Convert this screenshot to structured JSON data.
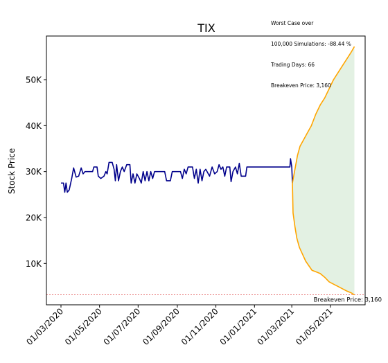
{
  "chart_data": {
    "type": "line",
    "title": "TIX",
    "ylabel": "Stock Price",
    "xlabel": "",
    "annotation_lines": [
      "Worst Case over",
      "100,000 Simulations: -88.44 %",
      "Trading Days: 66",
      "Breakeven Price: 3,160"
    ],
    "breakeven": {
      "label": "Breakeven Price: 3,160",
      "value": 3160,
      "color": "#d62728"
    },
    "xlim": [
      "2020-02-07",
      "2021-06-25"
    ],
    "ylim": [
      1000,
      59500
    ],
    "y_ticks": [
      {
        "value": 10000,
        "label": "10K"
      },
      {
        "value": 20000,
        "label": "20K"
      },
      {
        "value": 30000,
        "label": "30K"
      },
      {
        "value": 40000,
        "label": "40K"
      },
      {
        "value": 50000,
        "label": "50K"
      }
    ],
    "x_ticks": [
      {
        "value": "2020-03-01",
        "label": "01/03/2020"
      },
      {
        "value": "2020-05-01",
        "label": "01/05/2020"
      },
      {
        "value": "2020-07-01",
        "label": "01/07/2020"
      },
      {
        "value": "2020-09-01",
        "label": "01/09/2020"
      },
      {
        "value": "2020-11-01",
        "label": "01/11/2020"
      },
      {
        "value": "2021-01-01",
        "label": "01/01/2021"
      },
      {
        "value": "2021-03-01",
        "label": "01/03/2021"
      },
      {
        "value": "2021-05-01",
        "label": "01/05/2021"
      }
    ],
    "colors": {
      "history": "#00008b",
      "projection": "#ffa500",
      "band_fill": "#d9ecd9",
      "axes": "#000000"
    },
    "series": [
      {
        "kind": "history",
        "points": [
          [
            "2020-03-01",
            27500
          ],
          [
            "2020-03-05",
            27500
          ],
          [
            "2020-03-07",
            25500
          ],
          [
            "2020-03-09",
            27500
          ],
          [
            "2020-03-11",
            25500
          ],
          [
            "2020-03-14",
            26000
          ],
          [
            "2020-03-18",
            28500
          ],
          [
            "2020-03-21",
            30800
          ],
          [
            "2020-03-25",
            28800
          ],
          [
            "2020-03-29",
            29000
          ],
          [
            "2020-04-02",
            30800
          ],
          [
            "2020-04-05",
            29500
          ],
          [
            "2020-04-08",
            30000
          ],
          [
            "2020-04-20",
            30000
          ],
          [
            "2020-04-22",
            31000
          ],
          [
            "2020-04-27",
            31000
          ],
          [
            "2020-04-29",
            29000
          ],
          [
            "2020-05-03",
            28500
          ],
          [
            "2020-05-08",
            29000
          ],
          [
            "2020-05-11",
            30000
          ],
          [
            "2020-05-13",
            29500
          ],
          [
            "2020-05-16",
            32000
          ],
          [
            "2020-05-21",
            32000
          ],
          [
            "2020-05-24",
            30500
          ],
          [
            "2020-05-26",
            28000
          ],
          [
            "2020-05-28",
            31500
          ],
          [
            "2020-05-31",
            28000
          ],
          [
            "2020-06-03",
            30000
          ],
          [
            "2020-06-06",
            31000
          ],
          [
            "2020-06-09",
            30000
          ],
          [
            "2020-06-13",
            31500
          ],
          [
            "2020-06-18",
            31500
          ],
          [
            "2020-06-20",
            27500
          ],
          [
            "2020-06-23",
            29500
          ],
          [
            "2020-06-26",
            27500
          ],
          [
            "2020-06-29",
            29500
          ],
          [
            "2020-07-03",
            28500
          ],
          [
            "2020-07-06",
            27500
          ],
          [
            "2020-07-09",
            30000
          ],
          [
            "2020-07-12",
            28000
          ],
          [
            "2020-07-15",
            30000
          ],
          [
            "2020-07-18",
            28000
          ],
          [
            "2020-07-21",
            30000
          ],
          [
            "2020-07-24",
            28500
          ],
          [
            "2020-07-27",
            30000
          ],
          [
            "2020-08-12",
            30000
          ],
          [
            "2020-08-15",
            28000
          ],
          [
            "2020-08-21",
            28000
          ],
          [
            "2020-08-24",
            30000
          ],
          [
            "2020-09-06",
            30000
          ],
          [
            "2020-09-09",
            28500
          ],
          [
            "2020-09-12",
            30500
          ],
          [
            "2020-09-15",
            29500
          ],
          [
            "2020-09-18",
            31000
          ],
          [
            "2020-09-25",
            31000
          ],
          [
            "2020-09-28",
            28500
          ],
          [
            "2020-10-01",
            30500
          ],
          [
            "2020-10-04",
            27500
          ],
          [
            "2020-10-07",
            30500
          ],
          [
            "2020-10-10",
            28000
          ],
          [
            "2020-10-13",
            30000
          ],
          [
            "2020-10-16",
            30500
          ],
          [
            "2020-10-22",
            29000
          ],
          [
            "2020-10-26",
            31000
          ],
          [
            "2020-10-30",
            29500
          ],
          [
            "2020-11-03",
            30000
          ],
          [
            "2020-11-06",
            31500
          ],
          [
            "2020-11-09",
            30500
          ],
          [
            "2020-11-12",
            31000
          ],
          [
            "2020-11-15",
            29000
          ],
          [
            "2020-11-18",
            31000
          ],
          [
            "2020-11-23",
            31000
          ],
          [
            "2020-11-25",
            27800
          ],
          [
            "2020-11-28",
            30000
          ],
          [
            "2020-12-02",
            31000
          ],
          [
            "2020-12-05",
            29500
          ],
          [
            "2020-12-08",
            31800
          ],
          [
            "2020-12-11",
            29000
          ],
          [
            "2020-12-18",
            29000
          ],
          [
            "2020-12-20",
            31000
          ],
          [
            "2021-02-26",
            31000
          ],
          [
            "2021-02-27",
            32800
          ],
          [
            "2021-03-01",
            31000
          ],
          [
            "2021-03-02",
            27500
          ]
        ]
      },
      {
        "kind": "projection-upper",
        "points": [
          [
            "2021-03-02",
            27500
          ],
          [
            "2021-03-06",
            30500
          ],
          [
            "2021-03-10",
            33500
          ],
          [
            "2021-03-14",
            35500
          ],
          [
            "2021-03-20",
            37000
          ],
          [
            "2021-03-26",
            38500
          ],
          [
            "2021-04-01",
            40000
          ],
          [
            "2021-04-08",
            42500
          ],
          [
            "2021-04-15",
            44500
          ],
          [
            "2021-04-22",
            46000
          ],
          [
            "2021-04-29",
            48000
          ],
          [
            "2021-05-06",
            50000
          ],
          [
            "2021-05-13",
            51500
          ],
          [
            "2021-05-20",
            53000
          ],
          [
            "2021-05-27",
            54500
          ],
          [
            "2021-06-03",
            56000
          ],
          [
            "2021-06-08",
            57200
          ]
        ]
      },
      {
        "kind": "projection-lower",
        "points": [
          [
            "2021-03-02",
            27500
          ],
          [
            "2021-03-03",
            21000
          ],
          [
            "2021-03-06",
            18000
          ],
          [
            "2021-03-09",
            15500
          ],
          [
            "2021-03-13",
            13500
          ],
          [
            "2021-03-18",
            12000
          ],
          [
            "2021-03-23",
            10500
          ],
          [
            "2021-03-28",
            9500
          ],
          [
            "2021-04-02",
            8500
          ],
          [
            "2021-04-08",
            8200
          ],
          [
            "2021-04-15",
            7800
          ],
          [
            "2021-04-22",
            7000
          ],
          [
            "2021-04-29",
            6000
          ],
          [
            "2021-05-06",
            5500
          ],
          [
            "2021-05-13",
            5000
          ],
          [
            "2021-05-20",
            4500
          ],
          [
            "2021-05-27",
            4000
          ],
          [
            "2021-06-03",
            3600
          ],
          [
            "2021-06-08",
            3160
          ]
        ]
      }
    ]
  }
}
